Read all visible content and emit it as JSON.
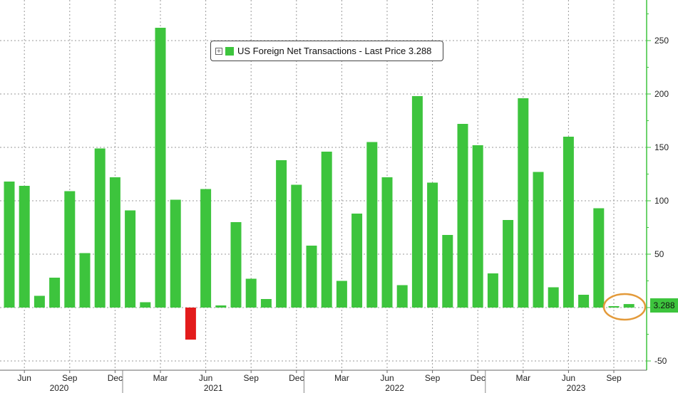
{
  "legend": {
    "label": "US Foreign Net Transactions - Last Price 3.288",
    "color": "#3dc43d",
    "icon": "expand-icon"
  },
  "last_price_tag": {
    "value": "3.288",
    "color": "#3dc43d"
  },
  "colors": {
    "positive": "#3dc43d",
    "negative": "#e31b1b",
    "axis": "#3dc43d",
    "highlight_circle": "#e39a3a"
  },
  "chart_data": {
    "type": "bar",
    "series": [
      {
        "name": "US Foreign Net Transactions",
        "x": [
          "2020-05",
          "2020-06",
          "2020-07",
          "2020-08",
          "2020-09",
          "2020-10",
          "2020-11",
          "2020-12",
          "2021-01",
          "2021-02",
          "2021-03",
          "2021-04",
          "2021-05",
          "2021-06",
          "2021-07",
          "2021-08",
          "2021-09",
          "2021-10",
          "2021-11",
          "2021-12",
          "2022-01",
          "2022-02",
          "2022-03",
          "2022-04",
          "2022-05",
          "2022-06",
          "2022-07",
          "2022-08",
          "2022-09",
          "2022-10",
          "2022-11",
          "2022-12",
          "2023-01",
          "2023-02",
          "2023-03",
          "2023-04",
          "2023-05",
          "2023-06",
          "2023-07",
          "2023-08",
          "2023-09",
          "2023-10"
        ],
        "values": [
          118,
          114,
          11,
          28,
          109,
          51,
          149,
          122,
          91,
          5,
          262,
          101,
          -30,
          111,
          2,
          80,
          27,
          8,
          138,
          115,
          58,
          146,
          25,
          88,
          155,
          122,
          21,
          198,
          117,
          68,
          172,
          152,
          32,
          82,
          196,
          127,
          19,
          160,
          12,
          93,
          1,
          3.288
        ]
      }
    ],
    "x_ticks": [
      "Jun",
      "Sep",
      "Dec",
      "Mar",
      "Jun",
      "Sep",
      "Dec",
      "Mar",
      "Jun",
      "Sep",
      "Dec",
      "Mar",
      "Jun",
      "Sep"
    ],
    "year_labels": [
      "2020",
      "2021",
      "2022",
      "2023"
    ],
    "y_ticks": [
      "-50",
      "50",
      "100",
      "150",
      "200",
      "250"
    ],
    "ylim": [
      -55,
      285
    ],
    "grid": true,
    "last_price": 3.288
  }
}
